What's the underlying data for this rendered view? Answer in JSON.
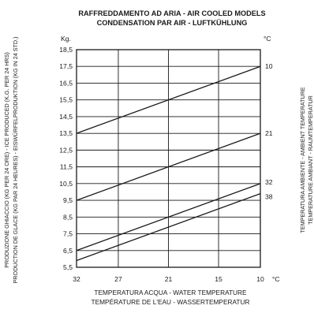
{
  "chart_data": {
    "type": "line",
    "title": "RAFFREDDAMENTO AD ARIA - AIR COOLED MODELS",
    "subtitle": "CONDENSATION PAR AIR - LUFTKÜHLUNG",
    "y_unit": "Kg.",
    "right_unit": "°C",
    "x_unit": "°C",
    "ylabel_lines": [
      "PRODUZIONE GHIACCIO (KG PER 24 ORE) - ICE PRODUCED (K.G. PER 24 HRS)",
      "PRODUCTION DE GLACE (KG PAR 24 HEURES) - EISWÜRFELPRODUKTION (KG IN 24 STD.)"
    ],
    "xlabel_lines": [
      "TEMPERATURA ACQUA - WATER TEMPERATURE",
      "TEMPÉRATURE DE L'EAU - WASSERTEMPERATUR"
    ],
    "right_label_lines": [
      "TEMPERATURA AMBIENTE - AMBIENT TEMPERATURE",
      "TEMPERATURE AMBIANT - RAUMTEMPERATUR"
    ],
    "x_ticks": [
      "32",
      "27",
      "21",
      "15",
      "10"
    ],
    "x_values": [
      32,
      27,
      21,
      15,
      10
    ],
    "y_ticks": [
      "5,5",
      "6,5",
      "7,5",
      "8,5",
      "9,5",
      "10,5",
      "11,5",
      "12,5",
      "13,5",
      "14,5",
      "15,5",
      "16,5",
      "17,5",
      "18,5"
    ],
    "ylim": [
      5.5,
      18.5
    ],
    "x_range": [
      32,
      10
    ],
    "grid": true,
    "series": [
      {
        "name": "10",
        "x": [
          32,
          10
        ],
        "y": [
          13.5,
          17.5
        ]
      },
      {
        "name": "21",
        "x": [
          32,
          10
        ],
        "y": [
          9.5,
          13.5
        ]
      },
      {
        "name": "32",
        "x": [
          32,
          10
        ],
        "y": [
          6.5,
          10.5
        ]
      },
      {
        "name": "38",
        "x": [
          32,
          10
        ],
        "y": [
          5.9,
          9.9
        ]
      }
    ]
  }
}
